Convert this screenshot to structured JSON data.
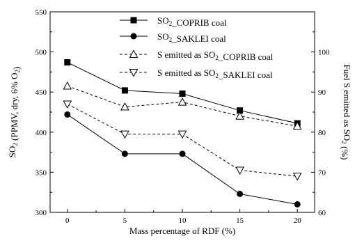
{
  "chart_data": {
    "type": "line",
    "x": [
      0,
      5,
      10,
      15,
      20
    ],
    "xlabel": "Mass percentage of RDF (%)",
    "ylabel_left": "SO2 (PPMV, dry, 6% O2)",
    "ylabel_right": "Fuel S emitted as SO2 (%)",
    "ylim_left": [
      300,
      550
    ],
    "ylim_right": [
      60,
      110
    ],
    "xlim": [
      -1.5,
      21.5
    ],
    "xticks": [
      "0",
      "5",
      "10",
      "15",
      "20"
    ],
    "yticks_left": [
      "300",
      "350",
      "400",
      "450",
      "500",
      "550"
    ],
    "yticks_right": [
      "60",
      "70",
      "80",
      "90",
      "100"
    ],
    "legend_position": "top-right",
    "series": [
      {
        "name": "SO2_COPRIB coal",
        "axis": "left",
        "marker": "square",
        "style": "solid",
        "values": [
          487,
          452,
          448,
          427,
          411
        ]
      },
      {
        "name": "SO2_SAKLEI coal",
        "axis": "left",
        "marker": "circle",
        "style": "solid",
        "values": [
          422,
          373,
          373,
          323,
          310
        ]
      },
      {
        "name": "S emitted as SO2_COPRIB coal",
        "axis": "right",
        "marker": "triangle-up",
        "style": "dashed",
        "values": [
          91.5,
          86.3,
          87.5,
          84.0,
          81.5
        ]
      },
      {
        "name": "S emitted as SO2_SAKLEI coal",
        "axis": "right",
        "marker": "triangle-down",
        "style": "dashed",
        "values": [
          87.0,
          79.5,
          79.5,
          70.5,
          69.0
        ]
      }
    ]
  }
}
